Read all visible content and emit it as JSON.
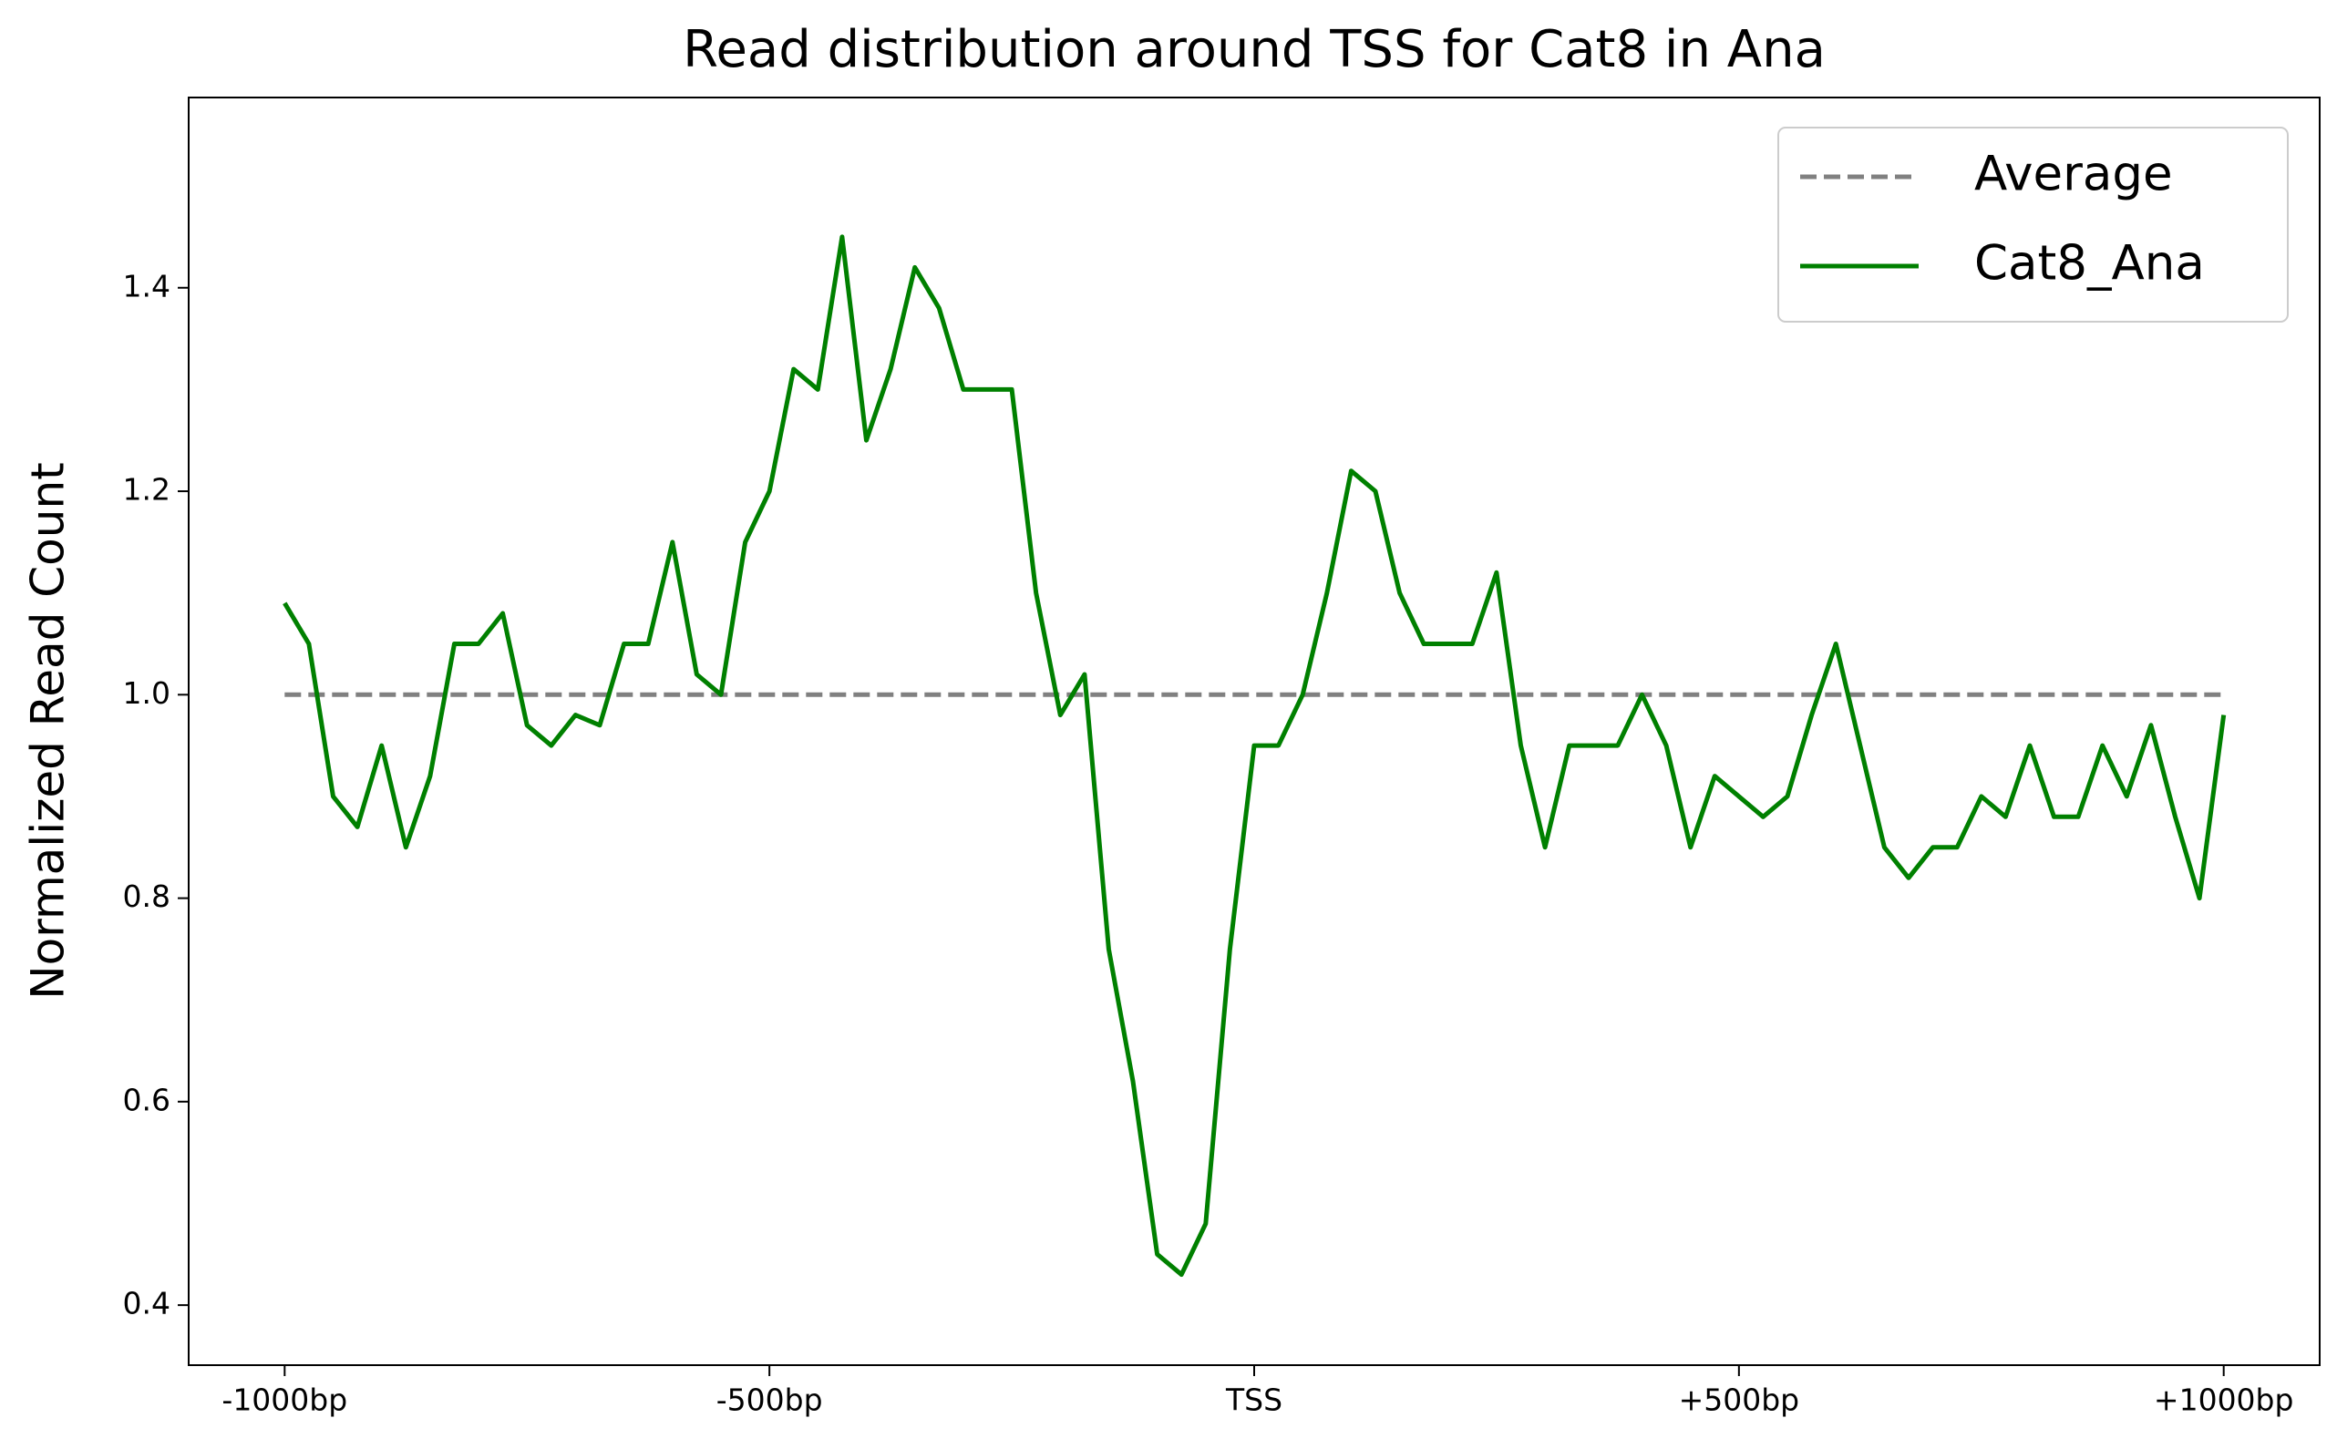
{
  "chart_data": {
    "type": "line",
    "title": "Read distribution around TSS for Cat8 in Ana",
    "y_label": "Normalized Read Count",
    "xlim": [
      -1099,
      1099
    ],
    "ylim": [
      0.341,
      1.587
    ],
    "xticks": [
      {
        "value": -1000,
        "label": "-1000bp"
      },
      {
        "value": -500,
        "label": "-500bp"
      },
      {
        "value": 0,
        "label": "TSS"
      },
      {
        "value": 500,
        "label": "+500bp"
      },
      {
        "value": 1000,
        "label": "+1000bp"
      }
    ],
    "yticks": [
      0.4,
      0.6,
      0.8,
      1.0,
      1.2,
      1.4
    ],
    "legend": "upper right",
    "grid": false,
    "series": [
      {
        "name": "Average",
        "color": "#808080",
        "linestyle": "dashed",
        "x": [
          -1000,
          1000
        ],
        "values": [
          1.0,
          1.0
        ]
      },
      {
        "name": "Cat8_Ana",
        "color": "#008000",
        "linestyle": "solid",
        "x": [
          -1000,
          -975,
          -950,
          -925,
          -900,
          -875,
          -850,
          -825,
          -800,
          -775,
          -750,
          -725,
          -700,
          -675,
          -650,
          -625,
          -600,
          -575,
          -550,
          -525,
          -500,
          -475,
          -450,
          -425,
          -400,
          -375,
          -350,
          -325,
          -300,
          -275,
          -250,
          -225,
          -200,
          -175,
          -150,
          -125,
          -100,
          -75,
          -50,
          -25,
          0,
          25,
          50,
          75,
          100,
          125,
          150,
          175,
          200,
          225,
          250,
          275,
          300,
          325,
          350,
          375,
          400,
          425,
          450,
          475,
          500,
          525,
          550,
          575,
          600,
          625,
          650,
          675,
          700,
          725,
          750,
          775,
          800,
          825,
          850,
          875,
          900,
          925,
          950,
          975,
          1000
        ],
        "values": [
          1.09,
          1.05,
          0.9,
          0.87,
          0.95,
          0.85,
          0.92,
          1.05,
          1.05,
          1.08,
          0.97,
          0.95,
          0.98,
          0.97,
          1.05,
          1.05,
          1.15,
          1.02,
          1.0,
          1.15,
          1.2,
          1.32,
          1.3,
          1.45,
          1.25,
          1.32,
          1.42,
          1.38,
          1.3,
          1.3,
          1.3,
          1.1,
          0.98,
          1.02,
          0.75,
          0.62,
          0.45,
          0.43,
          0.48,
          0.75,
          0.95,
          0.95,
          1.0,
          1.1,
          1.22,
          1.2,
          1.1,
          1.05,
          1.05,
          1.05,
          1.12,
          0.95,
          0.85,
          0.95,
          0.95,
          0.95,
          1.0,
          0.95,
          0.85,
          0.92,
          0.9,
          0.88,
          0.9,
          0.98,
          1.05,
          0.95,
          0.85,
          0.82,
          0.85,
          0.85,
          0.9,
          0.88,
          0.95,
          0.88,
          0.88,
          0.95,
          0.9,
          0.97,
          0.88,
          0.8,
          0.98
        ]
      }
    ]
  }
}
